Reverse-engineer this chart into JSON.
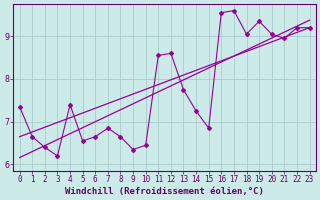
{
  "xlabel": "Windchill (Refroidissement éolien,°C)",
  "background_color": "#cceae8",
  "grid_color": "#aacccc",
  "line_color": "#990099",
  "xlim": [
    -0.5,
    23.5
  ],
  "ylim": [
    5.85,
    9.75
  ],
  "xticks": [
    0,
    1,
    2,
    3,
    4,
    5,
    6,
    7,
    8,
    9,
    10,
    11,
    12,
    13,
    14,
    15,
    16,
    17,
    18,
    19,
    20,
    21,
    22,
    23
  ],
  "yticks": [
    6,
    7,
    8,
    9
  ],
  "scatter_x": [
    0,
    1,
    2,
    3,
    4,
    5,
    6,
    7,
    8,
    9,
    10,
    11,
    12,
    13,
    14,
    15,
    16,
    17,
    18,
    19,
    20,
    21,
    22,
    23
  ],
  "scatter_y": [
    7.35,
    6.65,
    6.4,
    6.2,
    7.4,
    6.55,
    6.65,
    6.85,
    6.65,
    6.35,
    6.45,
    8.55,
    8.6,
    7.75,
    7.25,
    6.85,
    9.55,
    9.6,
    9.05,
    9.35,
    9.05,
    8.95,
    9.2,
    9.2
  ],
  "trend1_x": [
    0,
    23
  ],
  "trend1_y": [
    6.55,
    9.2
  ],
  "trend2_x": [
    0,
    23
  ],
  "trend2_y": [
    6.65,
    9.2
  ],
  "font_color": "#660066",
  "tick_fontsize": 5.5,
  "label_fontsize": 6.5
}
